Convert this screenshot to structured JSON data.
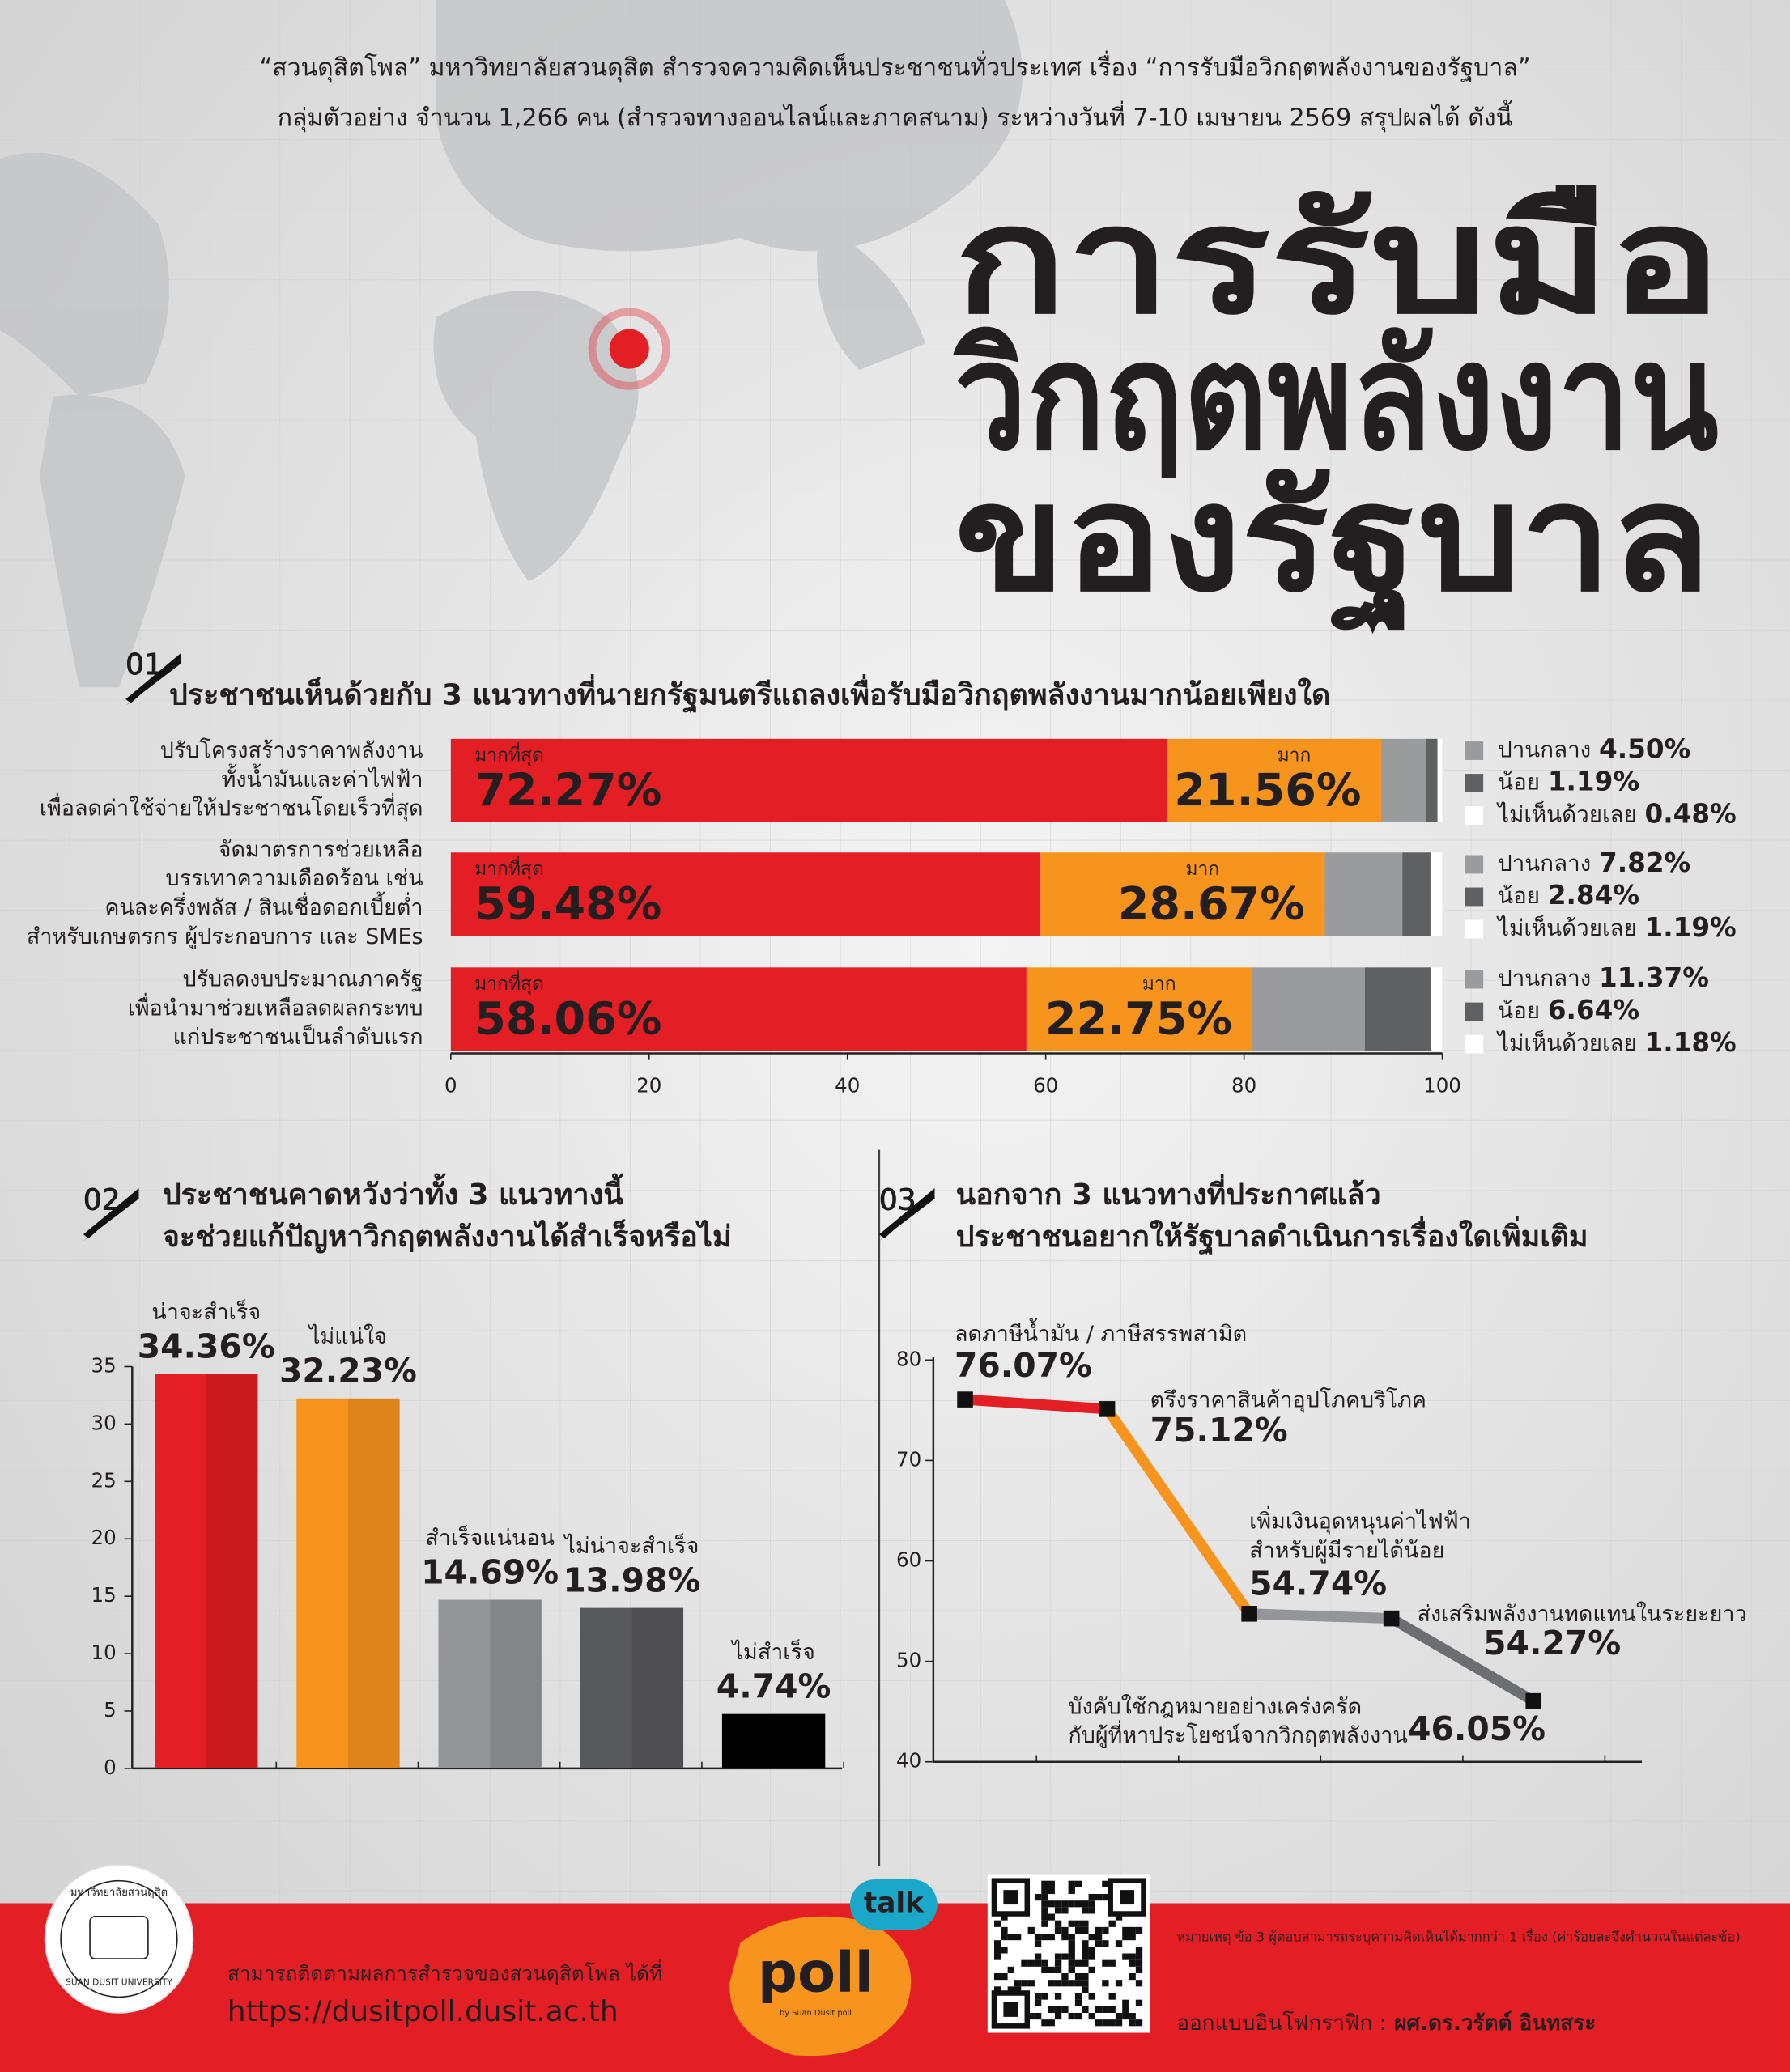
{
  "header": {
    "line1": "“สวนดุสิตโพล” มหาวิทยาลัยสวนดุสิต สำรวจความคิดเห็นประชาชนทั่วประเทศ เรื่อง “การรับมือวิกฤตพลังงานของรัฐบาล”",
    "line2": "กลุ่มตัวอย่าง จำนวน 1,266 คน (สำรวจทางออนไลน์และภาคสนาม) ระหว่างวันที่ 7-10 เมษายน 2569  สรุปผลได้ ดังนี้"
  },
  "title": [
    "การรับมือ",
    "วิกฤตพลังงาน",
    "ของรัฐบาล"
  ],
  "chart_data": [
    {
      "type": "bar",
      "orientation": "horizontal",
      "stacked": true,
      "number": "01",
      "title": "ประชาชนเห็นด้วยกับ 3 แนวทางที่นายกรัฐมนตรีแถลงเพื่อรับมือวิกฤตพลังงานมากน้อยเพียงใด",
      "categories": [
        [
          "ปรับโครงสร้างราคาพลังงาน",
          "ทั้งน้ำมันและค่าไฟฟ้า",
          "เพื่อลดค่าใช้จ่ายให้ประชาชนโดยเร็วที่สุด"
        ],
        [
          "จัดมาตรการช่วยเหลือ",
          "บรรเทาความเดือดร้อน เช่น",
          "คนละครึ่งพลัส / สินเชื่อดอกเบี้ยต่ำ",
          "สำหรับเกษตรกร ผู้ประกอบการ และ SMEs"
        ],
        [
          "ปรับลดงบประมาณภาครัฐ",
          "เพื่อนำมาช่วยเหลือลดผลกระทบ",
          "แก่ประชาชนเป็นลำดับแรก"
        ]
      ],
      "series": [
        {
          "name": "มากที่สุด",
          "color": "#e31e24",
          "values": [
            72.27,
            59.48,
            58.06
          ],
          "value_labels": [
            "72.27%",
            "59.48%",
            "58.06%"
          ]
        },
        {
          "name": "มาก",
          "color": "#f7941d",
          "values": [
            21.56,
            28.67,
            22.75
          ],
          "value_labels": [
            "21.56%",
            "28.67%",
            "22.75%"
          ]
        },
        {
          "name": "ปานกลาง",
          "color": "#9a9b9d",
          "values": [
            4.5,
            7.82,
            11.37
          ],
          "value_labels": [
            "4.50%",
            "7.82%",
            "11.37%"
          ]
        },
        {
          "name": "น้อย",
          "color": "#5f6062",
          "values": [
            1.19,
            2.84,
            6.64
          ],
          "value_labels": [
            "1.19%",
            "2.84%",
            "6.64%"
          ]
        },
        {
          "name": "ไม่เห็นด้วยเลย",
          "color": "#ffffff",
          "values": [
            0.48,
            1.19,
            1.18
          ],
          "value_labels": [
            "0.48%",
            "1.19%",
            "1.18%"
          ]
        }
      ],
      "xlim": [
        0,
        100
      ],
      "xticks": [
        0,
        20,
        40,
        60,
        80,
        100
      ]
    },
    {
      "type": "bar",
      "number": "02",
      "title": [
        "ประชาชนคาดหวังว่าทั้ง 3 แนวทางนี้",
        "จะช่วยแก้ปัญหาวิกฤตพลังงานได้สำเร็จหรือไม่"
      ],
      "categories": [
        "น่าจะสำเร็จ",
        "ไม่แน่ใจ",
        "สำเร็จแน่นอน",
        "ไม่น่าจะสำเร็จ",
        "ไม่สำเร็จ"
      ],
      "values": [
        34.36,
        32.23,
        14.69,
        13.98,
        4.74
      ],
      "value_labels": [
        "34.36%",
        "32.23%",
        "14.69%",
        "13.98%",
        "4.74%"
      ],
      "colors": [
        "#e31e24",
        "#f7941d",
        "#939598",
        "#58595b",
        "#000000"
      ],
      "ylim": [
        0,
        35
      ],
      "yticks": [
        0,
        5,
        10,
        15,
        20,
        25,
        30,
        35
      ]
    },
    {
      "type": "line",
      "number": "03",
      "title": [
        "นอกจาก 3 แนวทางที่ประกาศแล้ว",
        "ประชาชนอยากให้รัฐบาลดำเนินการเรื่องใดเพิ่มเติม"
      ],
      "categories": [
        [
          "ลดภาษีน้ำมัน / ภาษีสรรพสามิต"
        ],
        [
          "ตรึงราคาสินค้าอุปโภคบริโภค"
        ],
        [
          "เพิ่มเงินอุดหนุนค่าไฟฟ้า",
          "สำหรับผู้มีรายได้น้อย"
        ],
        [
          "ส่งเสริมพลังงานทดแทนในระยะยาว"
        ],
        [
          "บังคับใช้กฎหมายอย่างเคร่งครัด",
          "กับผู้ที่หาประโยชน์จากวิกฤตพลังงาน"
        ]
      ],
      "values": [
        76.07,
        75.12,
        54.74,
        54.27,
        46.05
      ],
      "value_labels": [
        "76.07%",
        "75.12%",
        "54.74%",
        "54.27%",
        "46.05%"
      ],
      "segment_colors": [
        "#e31e24",
        "#f7941d",
        "#939598",
        "#6d6e71"
      ],
      "marker_color": "#111111",
      "ylim": [
        40,
        80
      ],
      "yticks": [
        40,
        50,
        60,
        70,
        80
      ]
    }
  ],
  "footer": {
    "follow": "สามารถติดตามผลการสำรวจของสวนดุสิตโพล ได้ที่",
    "url": "https://dusitpoll.dusit.ac.th",
    "note": "หมายเหตุ   ข้อ 3 ผู้ตอบสามารถระบุความคิดเห็นได้มากกว่า 1 เรื่อง (ค่าร้อยละจึงคำนวณในแต่ละข้อ)",
    "designer_label": "ออกแบบอินโฟกราฟิก :",
    "designer": "ผศ.ดร.วรัตต์ อินทสระ",
    "logo_talk": "talk",
    "logo_poll": "poll",
    "logo_by": "by Suan Dusit poll",
    "university": "SUAN DUSIT UNIVERSITY",
    "university_th": "มหาวิทยาลัยสวนดุสิต"
  }
}
